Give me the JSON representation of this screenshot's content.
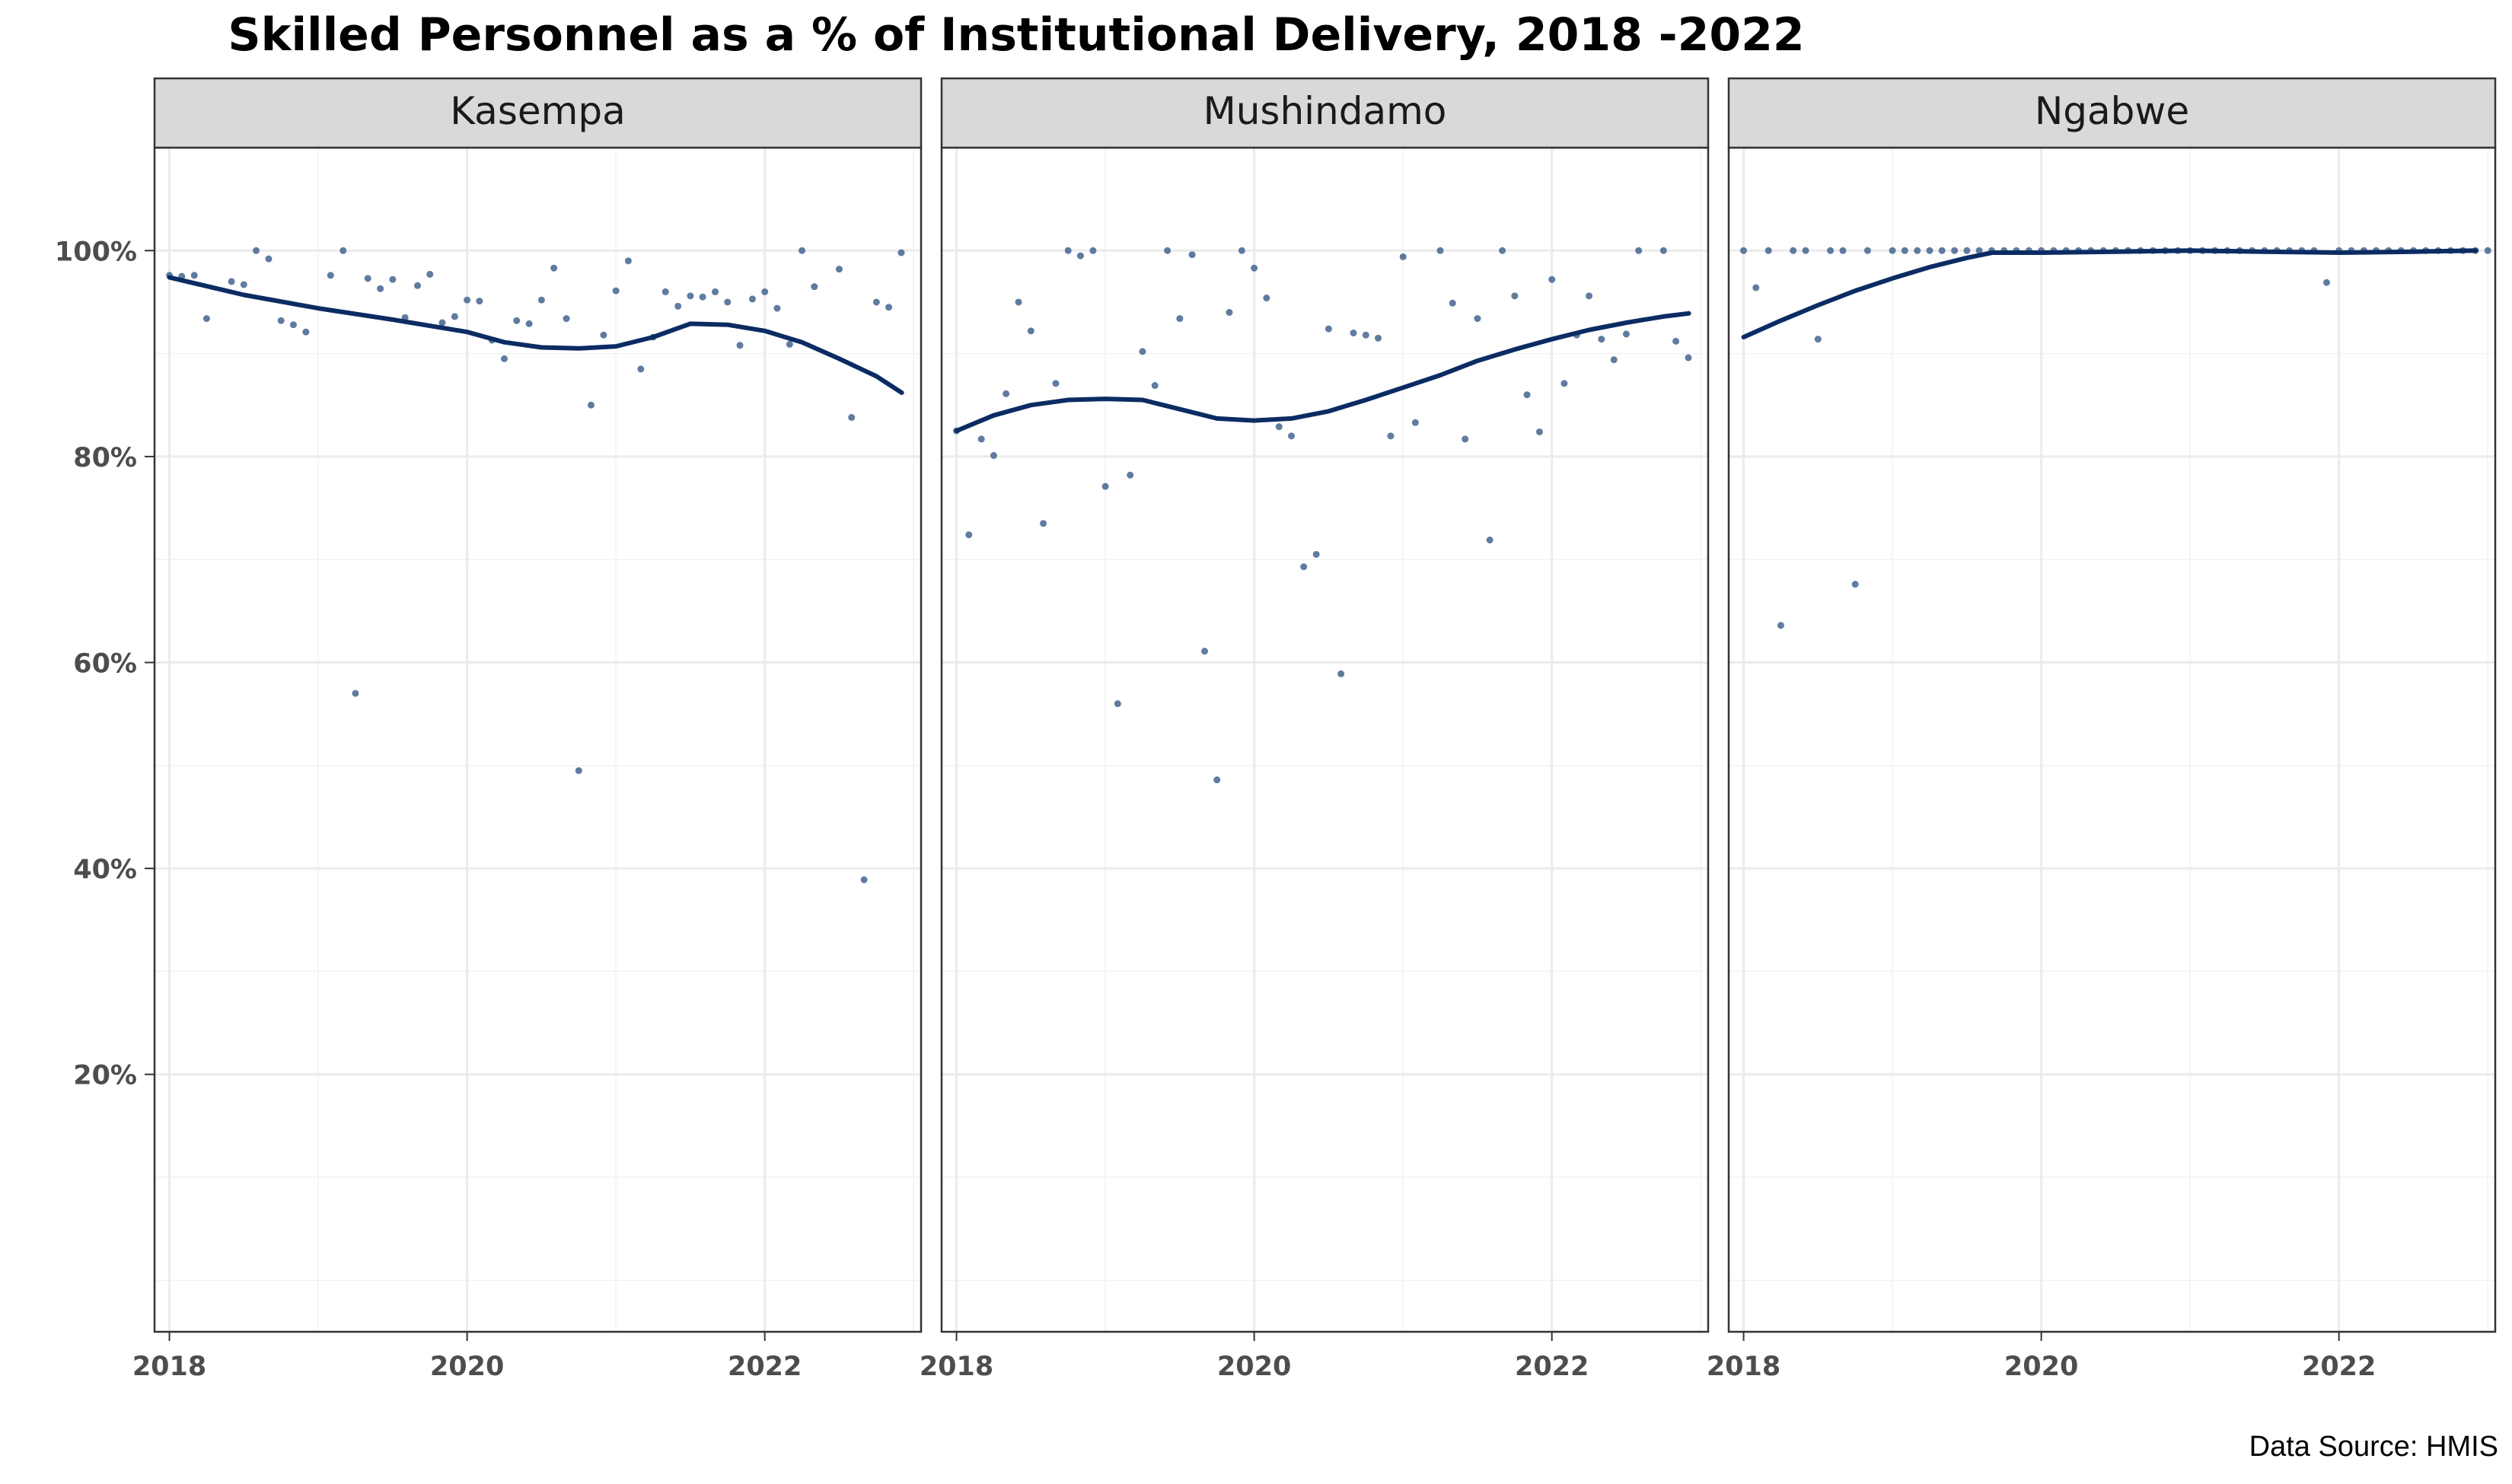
{
  "chart_data": {
    "type": "scatter",
    "title": "Skilled Personnel as a % of Institutional Delivery, 2018 -2022",
    "caption": "Data Source: HMIS",
    "xlim": [
      2017.9,
      2023.05
    ],
    "ylim": [
      -5,
      110
    ],
    "x_ticks": [
      2018,
      2020,
      2022
    ],
    "x_tick_labels": [
      "2018",
      "2020",
      "2022"
    ],
    "y_ticks": [
      20,
      40,
      60,
      80,
      100
    ],
    "y_tick_labels": [
      "20%",
      "40%",
      "60%",
      "80%",
      "100%"
    ],
    "grid": true,
    "colors": {
      "point": "#4E6D95",
      "smooth": "#0B2C63",
      "strip_bg": "#D9D9D9",
      "grid": "#EBEBEB"
    },
    "panels": [
      {
        "name": "Kasempa",
        "points": [
          [
            2018.0,
            97.6
          ],
          [
            2018.083,
            97.5
          ],
          [
            2018.167,
            97.6
          ],
          [
            2018.25,
            93.4
          ],
          [
            2018.417,
            97
          ],
          [
            2018.5,
            96.7
          ],
          [
            2018.583,
            100
          ],
          [
            2018.667,
            99.2
          ],
          [
            2018.75,
            93.2
          ],
          [
            2018.833,
            92.8
          ],
          [
            2018.917,
            92.1
          ],
          [
            2019.083,
            97.6
          ],
          [
            2019.167,
            100
          ],
          [
            2019.25,
            57
          ],
          [
            2019.333,
            97.3
          ],
          [
            2019.417,
            96.3
          ],
          [
            2019.5,
            97.2
          ],
          [
            2019.583,
            93.5
          ],
          [
            2019.667,
            96.6
          ],
          [
            2019.75,
            97.7
          ],
          [
            2019.833,
            93
          ],
          [
            2019.917,
            93.6
          ],
          [
            2020.0,
            95.2
          ],
          [
            2020.083,
            95.1
          ],
          [
            2020.167,
            91.3
          ],
          [
            2020.25,
            89.5
          ],
          [
            2020.333,
            93.2
          ],
          [
            2020.417,
            92.9
          ],
          [
            2020.5,
            95.2
          ],
          [
            2020.583,
            98.3
          ],
          [
            2020.667,
            93.4
          ],
          [
            2020.75,
            49.5
          ],
          [
            2020.833,
            85
          ],
          [
            2020.917,
            91.8
          ],
          [
            2021.0,
            96.1
          ],
          [
            2021.083,
            99
          ],
          [
            2021.167,
            88.5
          ],
          [
            2021.25,
            91.6
          ],
          [
            2021.333,
            96
          ],
          [
            2021.417,
            94.6
          ],
          [
            2021.5,
            95.6
          ],
          [
            2021.583,
            95.5
          ],
          [
            2021.667,
            96
          ],
          [
            2021.75,
            95
          ],
          [
            2021.833,
            90.8
          ],
          [
            2021.917,
            95.3
          ],
          [
            2022.0,
            96
          ],
          [
            2022.083,
            94.4
          ],
          [
            2022.167,
            90.9
          ],
          [
            2022.25,
            100
          ],
          [
            2022.333,
            96.5
          ],
          [
            2022.5,
            98.2
          ],
          [
            2022.583,
            83.8
          ],
          [
            2022.667,
            38.9
          ],
          [
            2022.75,
            95
          ],
          [
            2022.833,
            94.5
          ],
          [
            2022.917,
            99.8
          ]
        ],
        "smooth": [
          [
            2018.0,
            97.4
          ],
          [
            2018.5,
            95.7
          ],
          [
            2019.0,
            94.4
          ],
          [
            2019.5,
            93.3
          ],
          [
            2020.0,
            92.1
          ],
          [
            2020.25,
            91.1
          ],
          [
            2020.5,
            90.6
          ],
          [
            2020.75,
            90.5
          ],
          [
            2021.0,
            90.7
          ],
          [
            2021.25,
            91.6
          ],
          [
            2021.5,
            92.9
          ],
          [
            2021.75,
            92.8
          ],
          [
            2022.0,
            92.2
          ],
          [
            2022.25,
            91.1
          ],
          [
            2022.5,
            89.5
          ],
          [
            2022.75,
            87.8
          ],
          [
            2022.92,
            86.2
          ]
        ]
      },
      {
        "name": "Mushindamo",
        "points": [
          [
            2018.0,
            82.5
          ],
          [
            2018.083,
            72.4
          ],
          [
            2018.167,
            81.7
          ],
          [
            2018.25,
            80.1
          ],
          [
            2018.333,
            86.1
          ],
          [
            2018.417,
            95
          ],
          [
            2018.5,
            92.2
          ],
          [
            2018.583,
            73.5
          ],
          [
            2018.667,
            87.1
          ],
          [
            2018.75,
            100
          ],
          [
            2018.833,
            99.5
          ],
          [
            2018.917,
            100
          ],
          [
            2019.0,
            77.1
          ],
          [
            2019.083,
            56
          ],
          [
            2019.167,
            78.2
          ],
          [
            2019.25,
            90.2
          ],
          [
            2019.333,
            86.9
          ],
          [
            2019.417,
            100
          ],
          [
            2019.5,
            93.4
          ],
          [
            2019.583,
            99.6
          ],
          [
            2019.667,
            61.1
          ],
          [
            2019.75,
            48.6
          ],
          [
            2019.833,
            94
          ],
          [
            2019.917,
            100
          ],
          [
            2020.0,
            98.3
          ],
          [
            2020.083,
            95.4
          ],
          [
            2020.167,
            82.9
          ],
          [
            2020.25,
            82
          ],
          [
            2020.333,
            69.3
          ],
          [
            2020.417,
            70.5
          ],
          [
            2020.5,
            92.4
          ],
          [
            2020.583,
            58.9
          ],
          [
            2020.667,
            92
          ],
          [
            2020.75,
            91.8
          ],
          [
            2020.833,
            91.5
          ],
          [
            2020.917,
            82
          ],
          [
            2021.0,
            99.4
          ],
          [
            2021.083,
            83.3
          ],
          [
            2021.25,
            100
          ],
          [
            2021.333,
            94.9
          ],
          [
            2021.417,
            81.7
          ],
          [
            2021.5,
            93.4
          ],
          [
            2021.583,
            71.9
          ],
          [
            2021.667,
            100
          ],
          [
            2021.75,
            95.6
          ],
          [
            2021.833,
            86
          ],
          [
            2021.917,
            82.4
          ],
          [
            2022.0,
            97.2
          ],
          [
            2022.083,
            87.1
          ],
          [
            2022.167,
            91.8
          ],
          [
            2022.25,
            95.6
          ],
          [
            2022.333,
            91.4
          ],
          [
            2022.417,
            89.4
          ],
          [
            2022.5,
            91.9
          ],
          [
            2022.583,
            100
          ],
          [
            2022.75,
            100
          ],
          [
            2022.833,
            91.2
          ],
          [
            2022.917,
            89.6
          ]
        ],
        "smooth": [
          [
            2018.0,
            82.5
          ],
          [
            2018.25,
            84
          ],
          [
            2018.5,
            85
          ],
          [
            2018.75,
            85.5
          ],
          [
            2019.0,
            85.6
          ],
          [
            2019.25,
            85.5
          ],
          [
            2019.5,
            84.6
          ],
          [
            2019.75,
            83.7
          ],
          [
            2020.0,
            83.5
          ],
          [
            2020.25,
            83.7
          ],
          [
            2020.5,
            84.4
          ],
          [
            2020.75,
            85.5
          ],
          [
            2021.0,
            86.7
          ],
          [
            2021.25,
            87.9
          ],
          [
            2021.5,
            89.3
          ],
          [
            2021.75,
            90.4
          ],
          [
            2022.0,
            91.4
          ],
          [
            2022.25,
            92.3
          ],
          [
            2022.5,
            93
          ],
          [
            2022.75,
            93.6
          ],
          [
            2022.92,
            93.9
          ]
        ]
      },
      {
        "name": "Ngabwe",
        "points": [
          [
            2018.0,
            100
          ],
          [
            2018.083,
            96.4
          ],
          [
            2018.167,
            100
          ],
          [
            2018.25,
            63.6
          ],
          [
            2018.333,
            100
          ],
          [
            2018.417,
            100
          ],
          [
            2018.5,
            91.4
          ],
          [
            2018.583,
            100
          ],
          [
            2018.667,
            100
          ],
          [
            2018.75,
            67.6
          ],
          [
            2018.833,
            100
          ],
          [
            2019.0,
            100
          ],
          [
            2019.083,
            100
          ],
          [
            2019.167,
            100
          ],
          [
            2019.25,
            100
          ],
          [
            2019.333,
            100
          ],
          [
            2019.417,
            100
          ],
          [
            2019.5,
            100
          ],
          [
            2019.583,
            100
          ],
          [
            2019.667,
            100
          ],
          [
            2019.75,
            100
          ],
          [
            2019.833,
            100
          ],
          [
            2019.917,
            100
          ],
          [
            2020.0,
            100
          ],
          [
            2020.083,
            100
          ],
          [
            2020.167,
            100
          ],
          [
            2020.25,
            100
          ],
          [
            2020.333,
            100
          ],
          [
            2020.417,
            100
          ],
          [
            2020.5,
            100
          ],
          [
            2020.583,
            100
          ],
          [
            2020.667,
            100
          ],
          [
            2020.75,
            100
          ],
          [
            2020.833,
            100
          ],
          [
            2020.917,
            100
          ],
          [
            2021.0,
            100
          ],
          [
            2021.083,
            100
          ],
          [
            2021.167,
            100
          ],
          [
            2021.25,
            100
          ],
          [
            2021.333,
            100
          ],
          [
            2021.417,
            100
          ],
          [
            2021.5,
            100
          ],
          [
            2021.583,
            100
          ],
          [
            2021.667,
            100
          ],
          [
            2021.75,
            100
          ],
          [
            2021.833,
            100
          ],
          [
            2021.917,
            96.9
          ],
          [
            2022.0,
            100
          ],
          [
            2022.083,
            100
          ],
          [
            2022.167,
            100
          ],
          [
            2022.25,
            100
          ],
          [
            2022.333,
            100
          ],
          [
            2022.417,
            100
          ],
          [
            2022.5,
            100
          ],
          [
            2022.583,
            100
          ],
          [
            2022.667,
            100
          ],
          [
            2022.75,
            100
          ],
          [
            2022.833,
            100
          ],
          [
            2022.917,
            100
          ],
          [
            2023.0,
            100
          ]
        ],
        "smooth": [
          [
            2018.0,
            91.6
          ],
          [
            2018.25,
            93.2
          ],
          [
            2018.5,
            94.7
          ],
          [
            2018.75,
            96.1
          ],
          [
            2019.0,
            97.3
          ],
          [
            2019.25,
            98.4
          ],
          [
            2019.5,
            99.3
          ],
          [
            2019.67,
            99.8
          ],
          [
            2020.0,
            99.8
          ],
          [
            2020.5,
            99.9
          ],
          [
            2021.0,
            100
          ],
          [
            2021.5,
            99.9
          ],
          [
            2022.0,
            99.8
          ],
          [
            2022.5,
            99.9
          ],
          [
            2022.92,
            100
          ]
        ]
      }
    ]
  }
}
